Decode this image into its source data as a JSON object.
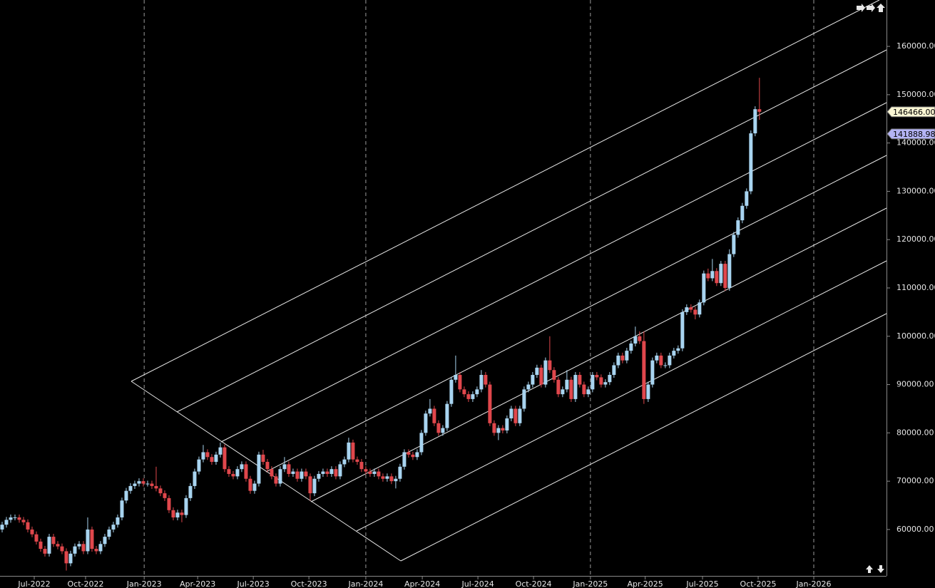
{
  "chart_data": {
    "type": "candlestick",
    "up_color": "#a8d4f0",
    "down_color": "#e0474c",
    "xlim": [
      -0.5,
      206.7
    ],
    "ylim": [
      50400,
      169600
    ],
    "yticks": [
      {
        "value": 60000,
        "label": "60000.00"
      },
      {
        "value": 70000,
        "label": "70000.00"
      },
      {
        "value": 80000,
        "label": "80000.00"
      },
      {
        "value": 90000,
        "label": "90000.00"
      },
      {
        "value": 100000,
        "label": "100000.00"
      },
      {
        "value": 110000,
        "label": "110000.00"
      },
      {
        "value": 120000,
        "label": "120000.00"
      },
      {
        "value": 130000,
        "label": "130000.00"
      },
      {
        "value": 140000,
        "label": "140000.00"
      },
      {
        "value": 150000,
        "label": "150000.00"
      },
      {
        "value": 160000,
        "label": "160000.00"
      }
    ],
    "xticks": [
      {
        "value": 7.5,
        "label": "Jul-2022"
      },
      {
        "value": 19.5,
        "label": "Oct-2022"
      },
      {
        "value": 33.2,
        "label": "Jan-2023"
      },
      {
        "value": 45.7,
        "label": "Apr-2023"
      },
      {
        "value": 58.7,
        "label": "Jul-2023"
      },
      {
        "value": 71.7,
        "label": "Oct-2023"
      },
      {
        "value": 85,
        "label": "Jan-2024"
      },
      {
        "value": 98.2,
        "label": "Apr-2024"
      },
      {
        "value": 111.2,
        "label": "Jul-2024"
      },
      {
        "value": 124.2,
        "label": "Oct-2024"
      },
      {
        "value": 137.5,
        "label": "Jan-2025"
      },
      {
        "value": 150.3,
        "label": "Apr-2025"
      },
      {
        "value": 163.7,
        "label": "Jul-2025"
      },
      {
        "value": 176.7,
        "label": "Oct-2025"
      },
      {
        "value": 189.7,
        "label": "Jan-2026"
      }
    ],
    "price_markers": [
      {
        "value": 146466,
        "label": "146466.00",
        "color": "#fbf7d4"
      },
      {
        "value": 141888.98,
        "label": "141888.98",
        "color": "#b4b4f5"
      }
    ],
    "open": [
      60000,
      61000,
      62000,
      62500,
      62500,
      62000,
      61500,
      60000,
      59000,
      57500,
      56000,
      55000,
      58500,
      57000,
      56500,
      55500,
      53000,
      55000,
      56500,
      57000,
      55500,
      60000,
      56000,
      55500,
      57000,
      58500,
      60000,
      61000,
      62500,
      66000,
      68000,
      69000,
      69500,
      70000,
      69500,
      69500,
      69000,
      68500,
      67500,
      66500,
      64000,
      62500,
      63500,
      63000,
      66500,
      69000,
      72000,
      74500,
      76000,
      75000,
      74000,
      75500,
      77000,
      72500,
      71500,
      71000,
      72500,
      73500,
      70500,
      68000,
      69500,
      75500,
      74000,
      72500,
      71000,
      69500,
      72500,
      73500,
      71500,
      72000,
      70500,
      72000,
      71000,
      67500,
      70500,
      71500,
      72000,
      71500,
      72500,
      71000,
      73500,
      74500,
      78000,
      74500,
      74000,
      72500,
      72000,
      71500,
      72000,
      71000,
      70500,
      71000,
      70000,
      70500,
      73000,
      76000,
      75500,
      75000,
      76000,
      80000,
      84000,
      85000,
      82000,
      80000,
      81000,
      86000,
      91000,
      92000,
      89000,
      88000,
      87000,
      88000,
      89000,
      92000,
      90000,
      82000,
      80000,
      81000,
      80500,
      83000,
      85000,
      82000,
      85000,
      89000,
      90000,
      92000,
      93500,
      90000,
      95000,
      93000,
      91000,
      88000,
      89000,
      91000,
      87000,
      92000,
      90000,
      88000,
      89000,
      92000,
      91500,
      90000,
      90500,
      92000,
      94000,
      96000,
      95000,
      97000,
      98500,
      100000,
      99000,
      87000,
      90000,
      95000,
      96000,
      94000,
      94000,
      96000,
      97000,
      97500,
      105000,
      106000,
      105500,
      104500,
      107000,
      113000,
      112000,
      113500,
      111000,
      115000,
      110000,
      117000,
      121000,
      124000,
      127000,
      130000,
      142000,
      147000
    ],
    "high": [
      61600,
      62600,
      63100,
      63100,
      63100,
      62600,
      62100,
      60600,
      59600,
      58100,
      56600,
      59100,
      59100,
      57600,
      57100,
      56100,
      55600,
      57100,
      57600,
      57600,
      62500,
      60600,
      56600,
      57600,
      59100,
      60600,
      61600,
      63100,
      66600,
      68600,
      69600,
      70100,
      70600,
      70600,
      70100,
      70100,
      73000,
      69100,
      68100,
      67100,
      64600,
      64100,
      64100,
      67100,
      69600,
      72600,
      75100,
      77500,
      76600,
      75600,
      76100,
      78000,
      77600,
      73100,
      72100,
      73100,
      74100,
      74100,
      71100,
      70100,
      76100,
      76500,
      74600,
      73100,
      71600,
      73100,
      75000,
      74100,
      72600,
      72600,
      72600,
      72600,
      71600,
      71100,
      72100,
      72600,
      72600,
      73100,
      73100,
      74100,
      75100,
      79000,
      78600,
      75100,
      74600,
      73100,
      72600,
      72600,
      72600,
      71600,
      71600,
      71600,
      71100,
      73600,
      76600,
      76600,
      76100,
      76600,
      80600,
      84600,
      87000,
      85600,
      82600,
      81600,
      86600,
      91600,
      96000,
      92600,
      89600,
      88600,
      88600,
      89600,
      93000,
      92600,
      90600,
      82600,
      81600,
      81600,
      83600,
      85600,
      85600,
      85600,
      89600,
      90600,
      92600,
      94100,
      94100,
      95600,
      100000,
      93600,
      91600,
      89600,
      93000,
      91600,
      92600,
      92600,
      90600,
      89600,
      92600,
      92600,
      92100,
      91100,
      92600,
      94600,
      96600,
      96600,
      97600,
      99100,
      102000,
      101000,
      101000,
      90600,
      95600,
      96600,
      96600,
      94600,
      96600,
      97600,
      98100,
      105600,
      106600,
      106600,
      106100,
      107600,
      113600,
      114000,
      116000,
      114100,
      115600,
      115600,
      118000,
      121600,
      124600,
      127600,
      130600,
      142600,
      147600,
      153500
    ],
    "low": [
      59400,
      60400,
      61400,
      61900,
      61400,
      60900,
      59400,
      58400,
      56900,
      55400,
      54400,
      54400,
      56400,
      55900,
      54900,
      51500,
      52400,
      54400,
      55900,
      54900,
      54900,
      55400,
      54900,
      54900,
      56400,
      57900,
      59400,
      60400,
      61900,
      65400,
      67400,
      68400,
      68900,
      68900,
      68900,
      68400,
      67900,
      66900,
      65900,
      63400,
      61900,
      61900,
      61500,
      62400,
      65900,
      68400,
      71400,
      73900,
      74400,
      73400,
      73400,
      74900,
      71900,
      70900,
      70400,
      70400,
      71900,
      69900,
      67400,
      67400,
      68900,
      73400,
      71900,
      70400,
      68900,
      68900,
      71900,
      70900,
      70900,
      69900,
      69900,
      70400,
      66000,
      66900,
      69900,
      70900,
      70900,
      70900,
      70400,
      70400,
      72900,
      73900,
      73900,
      73400,
      71900,
      71400,
      70900,
      70900,
      70400,
      69900,
      69900,
      69400,
      68500,
      69900,
      72400,
      74900,
      74400,
      74400,
      75400,
      79400,
      83400,
      81400,
      79400,
      79400,
      80400,
      85400,
      90400,
      88400,
      87400,
      86400,
      86400,
      87400,
      88400,
      89400,
      81400,
      79400,
      78500,
      79900,
      79900,
      82400,
      81400,
      81400,
      84400,
      88400,
      89400,
      91400,
      89400,
      89400,
      92400,
      90400,
      87400,
      87400,
      88400,
      86400,
      86400,
      89400,
      87400,
      87400,
      88400,
      90900,
      89400,
      89400,
      89900,
      91400,
      93400,
      94400,
      94400,
      96400,
      97900,
      98400,
      86000,
      86400,
      89400,
      94400,
      93400,
      93400,
      93400,
      95400,
      96400,
      96900,
      104400,
      104900,
      103500,
      103900,
      106400,
      111400,
      111400,
      110400,
      110400,
      109400,
      109400,
      116400,
      120400,
      123400,
      126400,
      129400,
      141400,
      144800
    ],
    "close": [
      61000,
      62000,
      62500,
      62500,
      62000,
      61500,
      60000,
      59000,
      57500,
      56000,
      55000,
      58500,
      57000,
      56500,
      55500,
      53000,
      55000,
      56500,
      57000,
      55500,
      60000,
      56000,
      55500,
      57000,
      58500,
      60000,
      61000,
      62500,
      66000,
      68000,
      69000,
      69500,
      70000,
      69500,
      69500,
      69000,
      68500,
      67500,
      66500,
      64000,
      62500,
      63500,
      63000,
      66500,
      69000,
      72000,
      74500,
      76000,
      75000,
      74000,
      75500,
      77000,
      72500,
      71500,
      71000,
      72500,
      73500,
      70500,
      68000,
      69500,
      75500,
      74000,
      72500,
      71000,
      69500,
      72500,
      73500,
      71500,
      72000,
      70500,
      72000,
      71000,
      67500,
      70500,
      71500,
      72000,
      71500,
      72500,
      71000,
      73500,
      74500,
      78000,
      74500,
      74000,
      72500,
      72000,
      71500,
      72000,
      71000,
      70500,
      71000,
      70000,
      70500,
      73000,
      76000,
      75500,
      75000,
      76000,
      80000,
      84000,
      85000,
      82000,
      80000,
      81000,
      86000,
      91000,
      92000,
      89000,
      88000,
      87000,
      88000,
      89000,
      92000,
      90000,
      82000,
      80000,
      81000,
      80500,
      83000,
      85000,
      82000,
      85000,
      89000,
      90000,
      92000,
      93500,
      90000,
      95000,
      93000,
      91000,
      88000,
      89000,
      91000,
      87000,
      92000,
      90000,
      88000,
      89000,
      92000,
      91500,
      90000,
      90500,
      92000,
      94000,
      96000,
      95000,
      97000,
      98500,
      100000,
      99000,
      87000,
      90000,
      95000,
      96000,
      94000,
      94000,
      96000,
      97000,
      97500,
      105000,
      106000,
      105500,
      104500,
      107000,
      113000,
      112000,
      113500,
      111000,
      115000,
      110000,
      117000,
      121000,
      124000,
      127000,
      130000,
      142000,
      147000,
      146466
    ]
  }
}
